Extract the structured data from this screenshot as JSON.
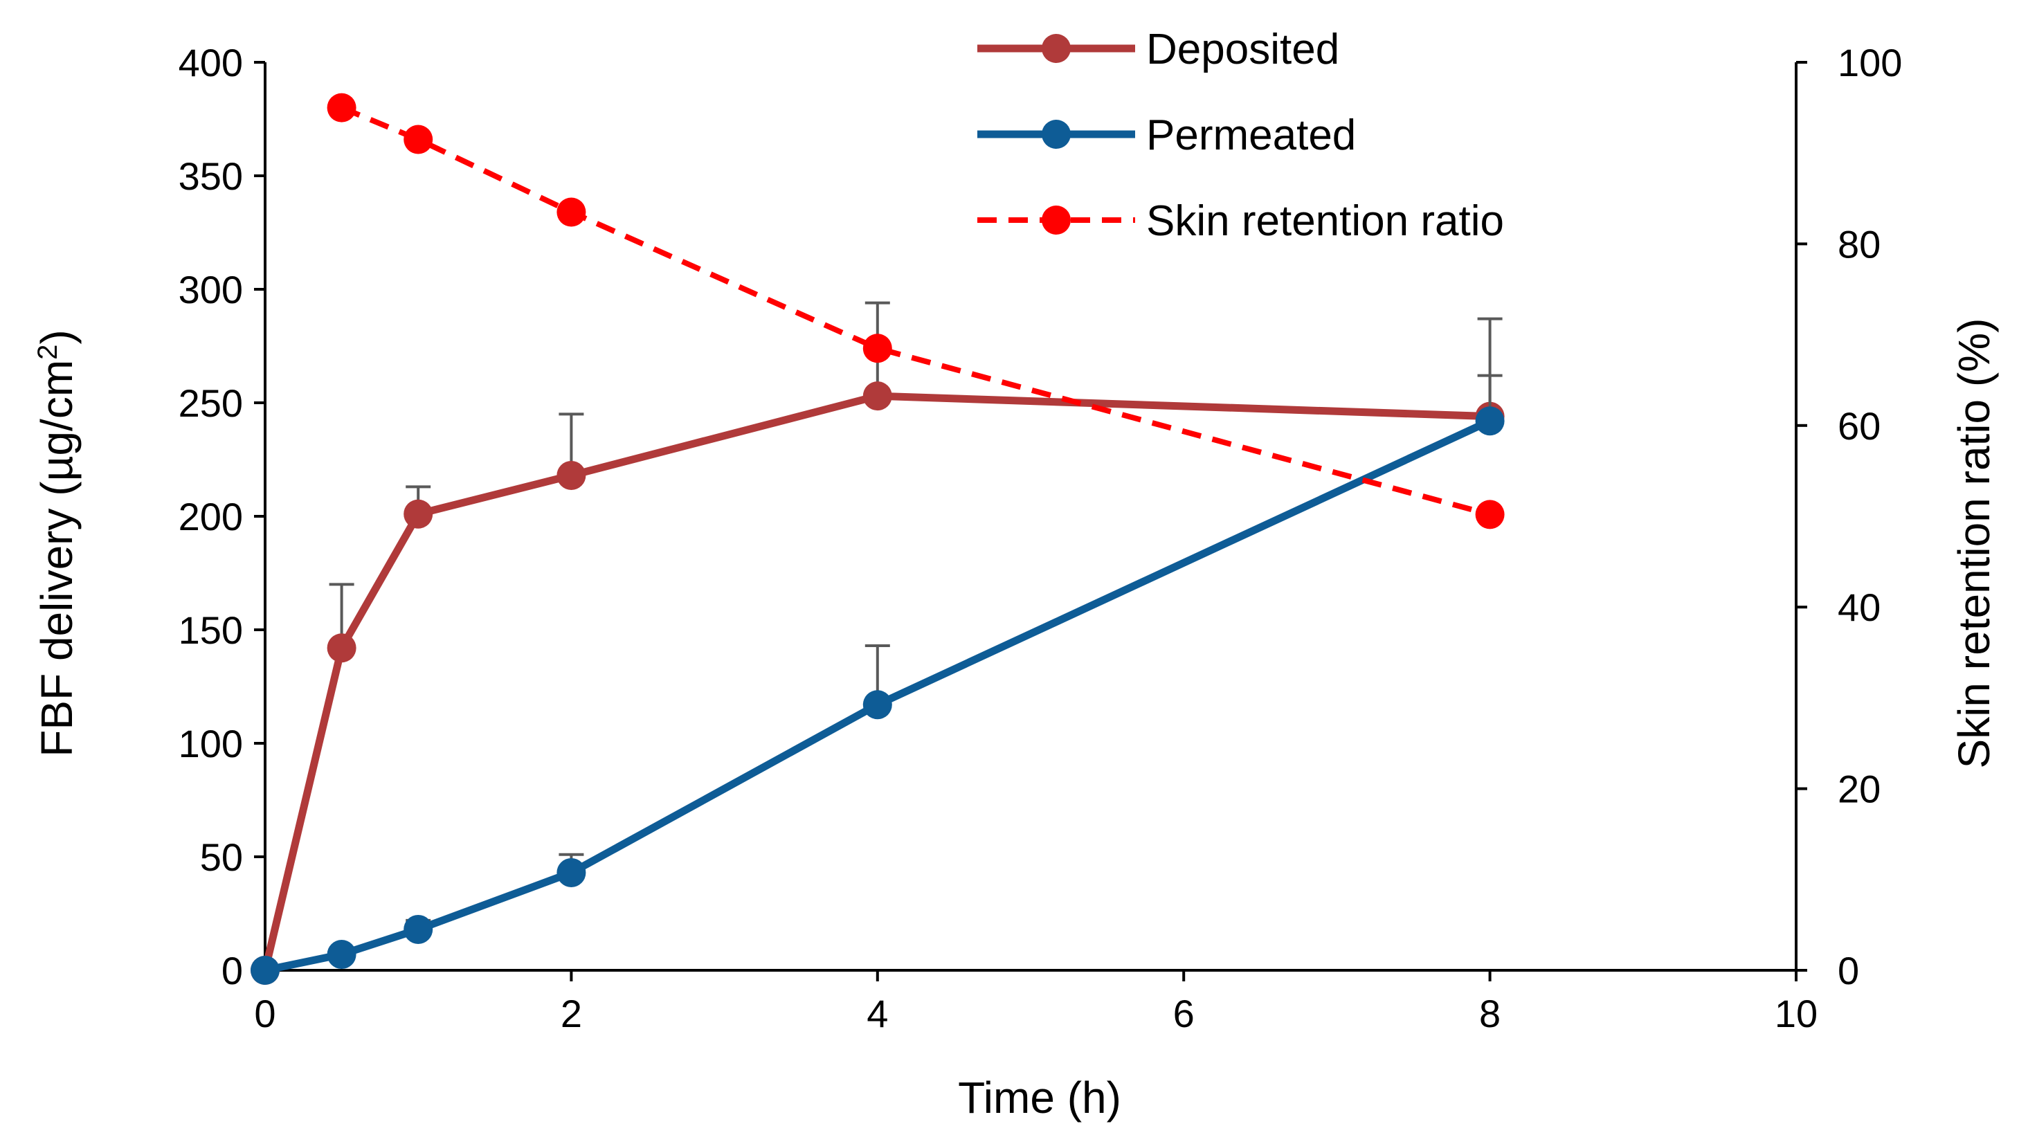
{
  "chart_data": {
    "type": "line",
    "title": "",
    "xlabel": "Time (h)",
    "ylabel": "FBF delivery (µg/cm²)",
    "ylabel_parts": {
      "main": "FBF delivery (µg/cm",
      "sup": "2",
      "end": ")"
    },
    "y2label": "Skin retention ratio (%)",
    "xlim": [
      0,
      10
    ],
    "ylim": [
      0,
      400
    ],
    "y2lim": [
      0,
      100
    ],
    "x_ticks": [
      "0",
      "2",
      "4",
      "6",
      "8",
      "10"
    ],
    "y_ticks": [
      "0",
      "50",
      "100",
      "150",
      "200",
      "250",
      "300",
      "350",
      "400"
    ],
    "y2_ticks": [
      "0",
      "20",
      "40",
      "60",
      "80",
      "100"
    ],
    "grid": false,
    "legend_position": "top-center",
    "series": [
      {
        "name": "Deposited",
        "axis": "left",
        "color": "#b03a3a",
        "style": "solid",
        "x": [
          0,
          0.5,
          1,
          2,
          4,
          8
        ],
        "values": [
          0,
          142,
          201,
          218,
          253,
          244
        ],
        "error_upper": [
          null,
          170,
          213,
          245,
          294,
          287
        ]
      },
      {
        "name": "Permeated",
        "axis": "left",
        "color": "#0e5c96",
        "style": "solid",
        "x": [
          0,
          0.5,
          1,
          2,
          4,
          8
        ],
        "values": [
          0,
          7,
          18,
          43,
          117,
          242
        ],
        "error_upper": [
          null,
          null,
          22,
          51,
          143,
          262
        ]
      },
      {
        "name": "Skin retention ratio",
        "axis": "right",
        "color": "#ff0000",
        "style": "dashed",
        "x": [
          0.5,
          1,
          2,
          4,
          8
        ],
        "values": [
          95,
          91.5,
          83.5,
          68.5,
          50.2
        ],
        "error_upper": [
          null,
          null,
          null,
          null,
          null
        ]
      }
    ],
    "error_bar_color": "#595959"
  }
}
